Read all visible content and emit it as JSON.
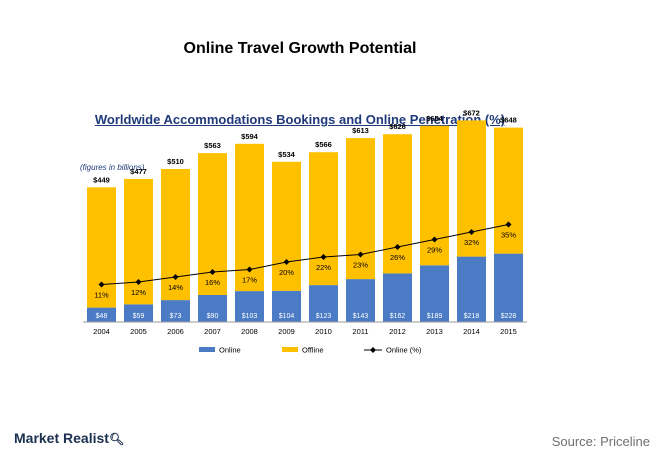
{
  "page": {
    "title": "Online Travel Growth Potential",
    "brand": "Market Realist",
    "brand_icon": "magnifier-icon",
    "source": "Source: Priceline"
  },
  "chart_data": {
    "type": "bar",
    "stacked": true,
    "title": "Worldwide Accommodations Bookings and Online Penetration (%)",
    "units_note": "(figures in billions)",
    "categories": [
      "2004",
      "2005",
      "2006",
      "2007",
      "2008",
      "2009",
      "2010",
      "2011",
      "2012",
      "2013",
      "2014",
      "2015"
    ],
    "totals": [
      "$449",
      "$477",
      "$510",
      "$563",
      "$594",
      "$534",
      "$566",
      "$613",
      "$626",
      "$654",
      "$672",
      "$648"
    ],
    "series": [
      {
        "name": "Online",
        "color": "#4a7bc4",
        "values": [
          48,
          59,
          73,
          90,
          103,
          104,
          123,
          143,
          162,
          189,
          218,
          228
        ],
        "labels": [
          "$48",
          "$59",
          "$73",
          "$90",
          "$103",
          "$104",
          "$123",
          "$143",
          "$162",
          "$189",
          "$218",
          "$228"
        ]
      },
      {
        "name": "Offline",
        "color": "#ffc000",
        "values": [
          401,
          418,
          437,
          473,
          491,
          430,
          443,
          470,
          464,
          465,
          454,
          420
        ]
      }
    ],
    "line": {
      "name": "Online (%)",
      "color": "#000000",
      "values": [
        11,
        12,
        14,
        16,
        17,
        20,
        22,
        23,
        26,
        29,
        32,
        35
      ],
      "labels": [
        "11%",
        "12%",
        "14%",
        "16%",
        "17%",
        "20%",
        "22%",
        "23%",
        "26%",
        "29%",
        "32%",
        "35%"
      ]
    },
    "ylim": [
      0,
      700
    ],
    "y2lim": [
      0,
      35
    ],
    "grid": false,
    "legend": "bottom"
  }
}
